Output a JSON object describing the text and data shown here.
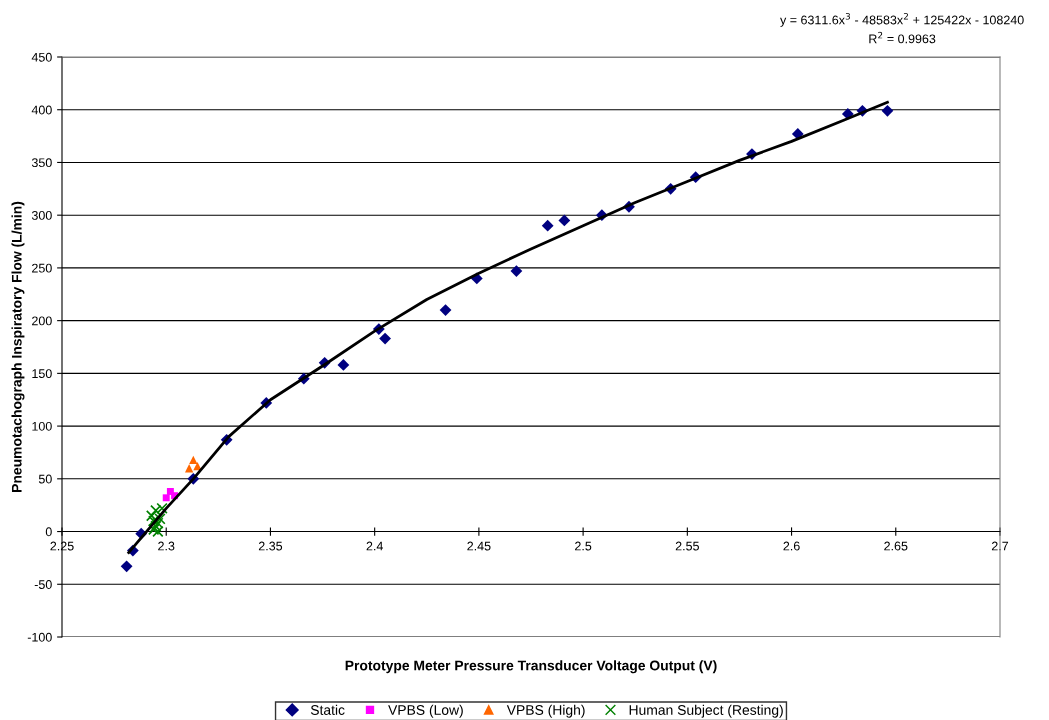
{
  "chart_data": {
    "type": "scatter",
    "xlabel": "Prototype Meter Pressure Transducer Voltage Output (V)",
    "ylabel": "Pneumotachograph Inspiratory Flow (L/min)",
    "xlim": [
      2.25,
      2.7
    ],
    "xticks": [
      2.25,
      2.3,
      2.35,
      2.4,
      2.45,
      2.5,
      2.55,
      2.6,
      2.65,
      2.7
    ],
    "ylim": [
      -100,
      450
    ],
    "yticks": [
      -100,
      -50,
      0,
      50,
      100,
      150,
      200,
      250,
      300,
      350,
      400,
      450
    ],
    "grid": "y",
    "legend": "bottom",
    "annotations": [
      "y = 6311.6x$^{3}$ - 48583x$^{2}$ + 125422x - 108240",
      "R$^{2}$ = 0.9963"
    ],
    "series": [
      {
        "name": "Static",
        "color": "#000080",
        "marker": "diamond",
        "x": [
          2.281,
          2.284,
          2.288,
          2.313,
          2.329,
          2.348,
          2.366,
          2.376,
          2.385,
          2.402,
          2.405,
          2.434,
          2.449,
          2.468,
          2.483,
          2.491,
          2.509,
          2.522,
          2.542,
          2.554,
          2.581,
          2.603,
          2.627,
          2.634,
          2.646
        ],
        "values": [
          -33,
          -18,
          -2,
          50,
          87,
          122,
          145,
          160,
          158,
          192,
          183,
          210,
          240,
          247,
          290,
          295,
          300,
          308,
          325,
          336,
          358,
          377,
          396,
          399,
          399
        ]
      },
      {
        "name": "VPBS (Low)",
        "color": "#ff00ff",
        "marker": "square",
        "x": [
          2.3,
          2.302,
          2.304
        ],
        "values": [
          32,
          38,
          34
        ]
      },
      {
        "name": "VPBS (High)",
        "color": "#ff6600",
        "marker": "triangle",
        "x": [
          2.311,
          2.313,
          2.315
        ],
        "values": [
          60,
          68,
          62
        ]
      },
      {
        "name": "Human Subject (Resting)",
        "color": "#008000",
        "marker": "cross",
        "x": [
          2.293,
          2.294,
          2.295,
          2.296,
          2.297,
          2.295,
          2.294,
          2.296,
          2.298
        ],
        "values": [
          15,
          10,
          5,
          8,
          12,
          20,
          2,
          0,
          22
        ]
      },
      {
        "type": "line",
        "color": "#000000",
        "marker": "none",
        "x": [
          2.282,
          2.3,
          2.313,
          2.33,
          2.35,
          2.375,
          2.4,
          2.425,
          2.45,
          2.475,
          2.5,
          2.525,
          2.55,
          2.575,
          2.6,
          2.625,
          2.646
        ],
        "values": [
          -20,
          22,
          50,
          90,
          125,
          157,
          190,
          220,
          245,
          268,
          290,
          312,
          332,
          352,
          370,
          390,
          407
        ]
      }
    ]
  }
}
